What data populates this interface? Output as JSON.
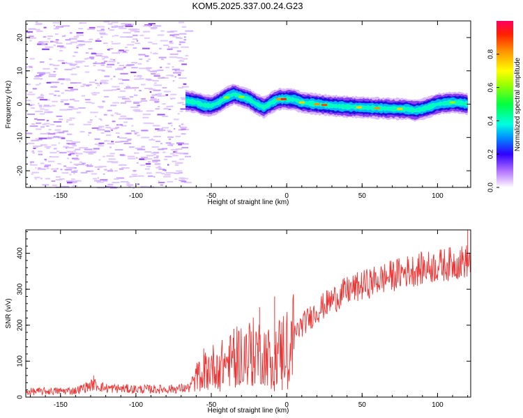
{
  "title": "KOM5.2025.337.00.24.G23",
  "chart_data": [
    {
      "type": "heatmap",
      "name": "spectrogram",
      "xlabel": "Height of straight line (km)",
      "ylabel": "Frequency (Hz)",
      "xlim": [
        -173,
        122
      ],
      "ylim": [
        -25,
        25
      ],
      "xticks": [
        -150,
        -100,
        -50,
        0,
        50,
        100
      ],
      "yticks": [
        -20,
        -10,
        0,
        10,
        20
      ],
      "noise_region_x": [
        -173,
        -67
      ],
      "signal_trace": {
        "x": [
          -67,
          -60,
          -55,
          -50,
          -45,
          -40,
          -35,
          -30,
          -25,
          -20,
          -15,
          -10,
          -5,
          0,
          5,
          10,
          20,
          30,
          40,
          50,
          60,
          70,
          80,
          85,
          90,
          95,
          100,
          105,
          110,
          115,
          120
        ],
        "freq": [
          1.0,
          0.5,
          -0.3,
          -0.5,
          0.5,
          2.0,
          3.0,
          2.2,
          1.5,
          0.0,
          -1.0,
          0.5,
          1.5,
          1.5,
          1.4,
          0.5,
          0.0,
          -0.5,
          -0.8,
          -1.0,
          -1.2,
          -1.4,
          -1.5,
          -1.9,
          -1.5,
          -0.8,
          0.0,
          0.3,
          0.5,
          0.4,
          0.0
        ]
      },
      "colorbar": {
        "label": "Normalized spectral amplitude",
        "range": [
          0,
          1
        ],
        "ticks": [
          "0.0",
          "0.2",
          "0.4",
          "0.6",
          "0.8"
        ]
      }
    },
    {
      "type": "line",
      "name": "snr",
      "color": "#ee3333",
      "xlabel": "Height of straight line (km)",
      "ylabel": "SNR (v/v)",
      "xlim": [
        -173,
        122
      ],
      "ylim": [
        0,
        465
      ],
      "xticks": [
        -150,
        -100,
        -50,
        0,
        50,
        100
      ],
      "yticks": [
        0,
        100,
        200,
        300,
        400
      ],
      "baseline_knots": {
        "x": [
          -173,
          -140,
          -128,
          -120,
          -100,
          -80,
          -65,
          -60,
          -50,
          -40,
          -30,
          -20,
          -10,
          0,
          10,
          20,
          30,
          40,
          50,
          60,
          80,
          100,
          122
        ],
        "snr": [
          15,
          18,
          35,
          25,
          22,
          22,
          25,
          55,
          85,
          95,
          120,
          130,
          110,
          150,
          200,
          240,
          270,
          295,
          310,
          325,
          350,
          365,
          380
        ]
      },
      "spikes": [
        {
          "x": -128,
          "snr": 60
        },
        {
          "x": -55,
          "snr": 135
        },
        {
          "x": -35,
          "snr": 190
        },
        {
          "x": -18,
          "snr": 250
        },
        {
          "x": -8,
          "snr": 280
        },
        {
          "x": -3,
          "snr": 20
        },
        {
          "x": 120,
          "snr": 465
        }
      ]
    }
  ]
}
